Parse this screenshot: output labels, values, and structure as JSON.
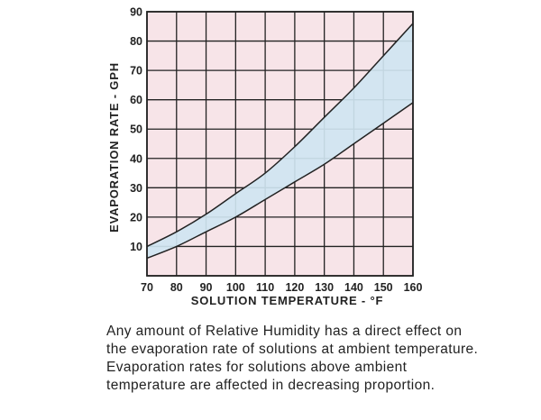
{
  "chart_data": {
    "type": "area",
    "title": "",
    "xlabel": "SOLUTION TEMPERATURE - °F",
    "ylabel": "EVAPORATION RATE - GPH",
    "xlim": [
      70,
      160
    ],
    "ylim": [
      0,
      90
    ],
    "xticks": [
      70,
      80,
      90,
      100,
      110,
      120,
      130,
      140,
      150,
      160
    ],
    "yticks": [
      10,
      20,
      30,
      40,
      50,
      60,
      70,
      80,
      90
    ],
    "grid": true,
    "background_color": "#f7e4e8",
    "band_color": "#cfe5f1",
    "line_color": "#222222",
    "x": [
      70,
      80,
      90,
      100,
      110,
      120,
      130,
      140,
      150,
      160
    ],
    "series": [
      {
        "values": [
          10,
          15,
          21,
          28,
          35,
          44,
          54,
          64,
          75,
          86
        ]
      },
      {
        "values": [
          6,
          10,
          15,
          20,
          26,
          32,
          38,
          45,
          52,
          59
        ]
      }
    ]
  },
  "caption": "Any amount of Relative Humidity has a direct effect on the evaporation rate of solutions at ambient temperature. Evaporation rates for solutions above ambient temperature are affected in decreasing proportion."
}
